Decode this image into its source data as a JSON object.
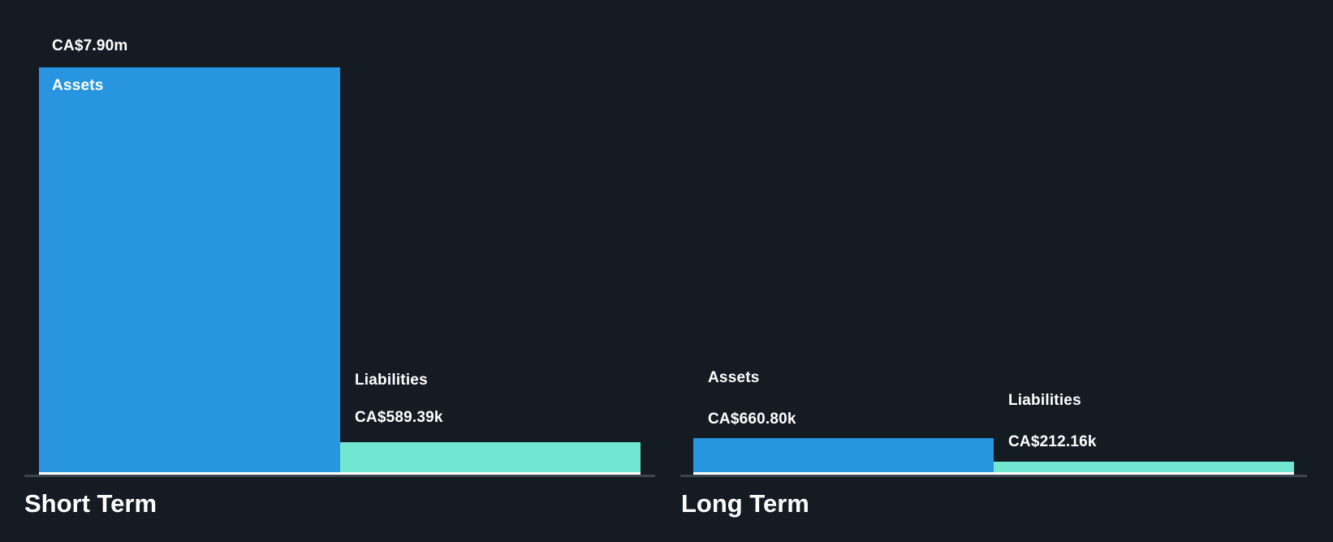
{
  "background_color": "#151B23",
  "text_color": "#FFFFFF",
  "axis_color": "#3E444D",
  "baseline_color": "#FFFFFF",
  "chart_data": {
    "type": "bar",
    "categories": [
      "Short Term",
      "Long Term"
    ],
    "series": [
      {
        "name": "Assets",
        "color": "#2795DF",
        "values": [
          7900000,
          660800
        ],
        "labels": [
          "CA$7.90m",
          "CA$660.80k"
        ]
      },
      {
        "name": "Liabilities",
        "color": "#71E6D0",
        "values": [
          589390,
          212160
        ],
        "labels": [
          "CA$589.39k",
          "CA$212.16k"
        ]
      }
    ],
    "currency": "CA$",
    "ylim": [
      0,
      7900000
    ],
    "grid": false,
    "legend_position": "none",
    "value_label_position": "above-bar",
    "series_label_position": "inline"
  }
}
